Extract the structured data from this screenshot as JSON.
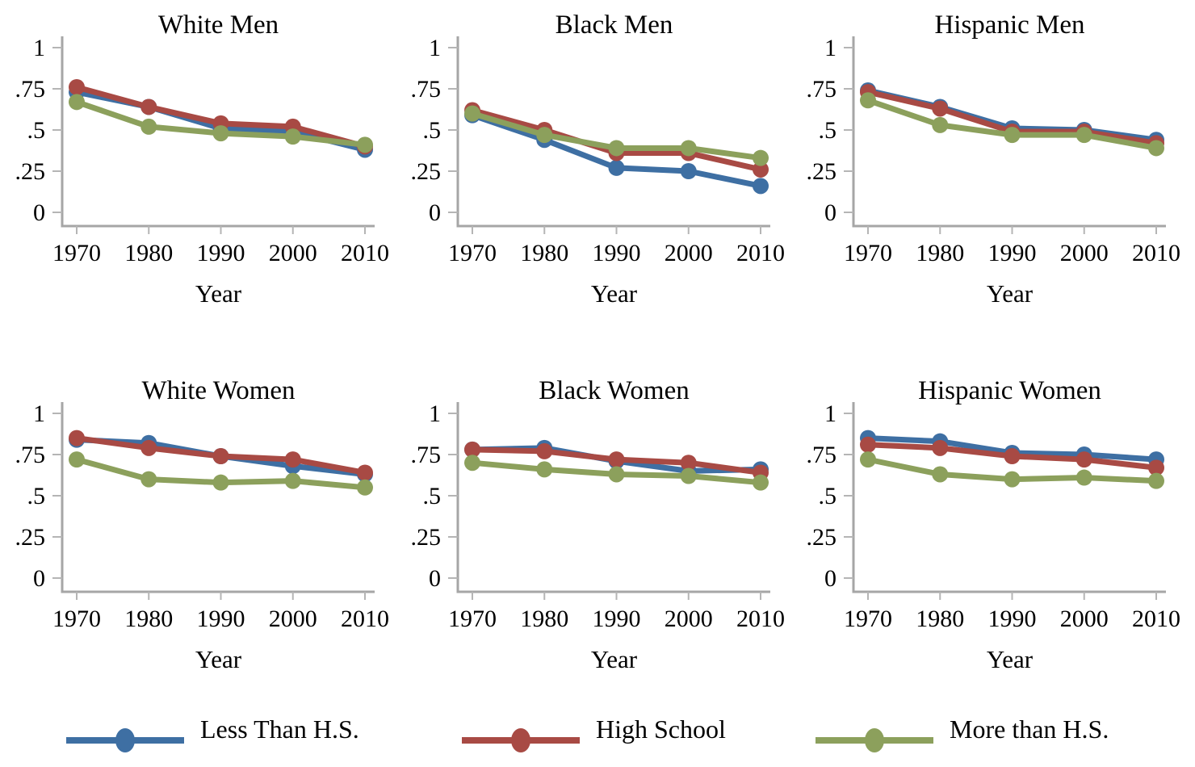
{
  "figure": {
    "background": "#ffffff",
    "text_color": "#000000",
    "axis_color": "#a6a6a6",
    "tick_color": "#b5b5b5"
  },
  "palette": {
    "less_than_hs": "#3e6fa3",
    "high_school": "#a84a44",
    "more_than_hs": "#8ca05c"
  },
  "legend": {
    "entries": [
      {
        "label": "Less Than H.S.",
        "color": "#3e6fa3"
      },
      {
        "label": "High School",
        "color": "#a84a44"
      },
      {
        "label": "More than H.S.",
        "color": "#8ca05c"
      }
    ]
  },
  "chart_data": [
    {
      "type": "line",
      "title": "White Men",
      "xlabel": "Year",
      "x": [
        1970,
        1980,
        1990,
        2000,
        2010
      ],
      "xtick_labels": [
        "1970",
        "1980",
        "1990",
        "2000",
        "2010"
      ],
      "ylim": [
        0,
        1
      ],
      "ytick_labels": [
        "0",
        ".25",
        ".5",
        ".75",
        "1"
      ],
      "ytick_values": [
        0,
        0.25,
        0.5,
        0.75,
        1
      ],
      "grid": false,
      "series": [
        {
          "name": "Less Than H.S.",
          "color": "#3e6fa3",
          "values": [
            0.73,
            0.64,
            0.51,
            0.49,
            0.38
          ]
        },
        {
          "name": "High School",
          "color": "#a84a44",
          "values": [
            0.76,
            0.64,
            0.54,
            0.52,
            0.4
          ]
        },
        {
          "name": "More than H.S.",
          "color": "#8ca05c",
          "values": [
            0.67,
            0.52,
            0.48,
            0.46,
            0.41
          ]
        }
      ]
    },
    {
      "type": "line",
      "title": "Black Men",
      "xlabel": "Year",
      "x": [
        1970,
        1980,
        1990,
        2000,
        2010
      ],
      "xtick_labels": [
        "1970",
        "1980",
        "1990",
        "2000",
        "2010"
      ],
      "ylim": [
        0,
        1
      ],
      "ytick_labels": [
        "0",
        ".25",
        ".5",
        ".75",
        "1"
      ],
      "ytick_values": [
        0,
        0.25,
        0.5,
        0.75,
        1
      ],
      "grid": false,
      "series": [
        {
          "name": "Less Than H.S.",
          "color": "#3e6fa3",
          "values": [
            0.59,
            0.44,
            0.27,
            0.25,
            0.16
          ]
        },
        {
          "name": "High School",
          "color": "#a84a44",
          "values": [
            0.62,
            0.5,
            0.36,
            0.36,
            0.26
          ]
        },
        {
          "name": "More than H.S.",
          "color": "#8ca05c",
          "values": [
            0.6,
            0.47,
            0.39,
            0.39,
            0.33
          ]
        }
      ]
    },
    {
      "type": "line",
      "title": "Hispanic Men",
      "xlabel": "Year",
      "x": [
        1970,
        1980,
        1990,
        2000,
        2010
      ],
      "xtick_labels": [
        "1970",
        "1980",
        "1990",
        "2000",
        "2010"
      ],
      "ylim": [
        0,
        1
      ],
      "ytick_labels": [
        "0",
        ".25",
        ".5",
        ".75",
        "1"
      ],
      "ytick_values": [
        0,
        0.25,
        0.5,
        0.75,
        1
      ],
      "grid": false,
      "series": [
        {
          "name": "Less Than H.S.",
          "color": "#3e6fa3",
          "values": [
            0.74,
            0.64,
            0.51,
            0.5,
            0.44
          ]
        },
        {
          "name": "High School",
          "color": "#a84a44",
          "values": [
            0.73,
            0.63,
            0.49,
            0.49,
            0.42
          ]
        },
        {
          "name": "More than H.S.",
          "color": "#8ca05c",
          "values": [
            0.68,
            0.53,
            0.47,
            0.47,
            0.39
          ]
        }
      ]
    },
    {
      "type": "line",
      "title": "White Women",
      "xlabel": "Year",
      "x": [
        1970,
        1980,
        1990,
        2000,
        2010
      ],
      "xtick_labels": [
        "1970",
        "1980",
        "1990",
        "2000",
        "2010"
      ],
      "ylim": [
        0,
        1
      ],
      "ytick_labels": [
        "0",
        ".25",
        ".5",
        ".75",
        "1"
      ],
      "ytick_values": [
        0,
        0.25,
        0.5,
        0.75,
        1
      ],
      "grid": false,
      "series": [
        {
          "name": "Less Than H.S.",
          "color": "#3e6fa3",
          "values": [
            0.84,
            0.82,
            0.74,
            0.68,
            0.63
          ]
        },
        {
          "name": "High School",
          "color": "#a84a44",
          "values": [
            0.85,
            0.79,
            0.74,
            0.72,
            0.64
          ]
        },
        {
          "name": "More than H.S.",
          "color": "#8ca05c",
          "values": [
            0.72,
            0.6,
            0.58,
            0.59,
            0.55
          ]
        }
      ]
    },
    {
      "type": "line",
      "title": "Black Women",
      "xlabel": "Year",
      "x": [
        1970,
        1980,
        1990,
        2000,
        2010
      ],
      "xtick_labels": [
        "1970",
        "1980",
        "1990",
        "2000",
        "2010"
      ],
      "ylim": [
        0,
        1
      ],
      "ytick_labels": [
        "0",
        ".25",
        ".5",
        ".75",
        "1"
      ],
      "ytick_values": [
        0,
        0.25,
        0.5,
        0.75,
        1
      ],
      "grid": false,
      "series": [
        {
          "name": "Less Than H.S.",
          "color": "#3e6fa3",
          "values": [
            0.78,
            0.79,
            0.71,
            0.65,
            0.66
          ]
        },
        {
          "name": "High School",
          "color": "#a84a44",
          "values": [
            0.78,
            0.77,
            0.72,
            0.7,
            0.64
          ]
        },
        {
          "name": "More than H.S.",
          "color": "#8ca05c",
          "values": [
            0.7,
            0.66,
            0.63,
            0.62,
            0.58
          ]
        }
      ]
    },
    {
      "type": "line",
      "title": "Hispanic Women",
      "xlabel": "Year",
      "x": [
        1970,
        1980,
        1990,
        2000,
        2010
      ],
      "xtick_labels": [
        "1970",
        "1980",
        "1990",
        "2000",
        "2010"
      ],
      "ylim": [
        0,
        1
      ],
      "ytick_labels": [
        "0",
        ".25",
        ".5",
        ".75",
        "1"
      ],
      "ytick_values": [
        0,
        0.25,
        0.5,
        0.75,
        1
      ],
      "grid": false,
      "series": [
        {
          "name": "Less Than H.S.",
          "color": "#3e6fa3",
          "values": [
            0.85,
            0.83,
            0.76,
            0.75,
            0.72
          ]
        },
        {
          "name": "High School",
          "color": "#a84a44",
          "values": [
            0.81,
            0.79,
            0.74,
            0.72,
            0.67
          ]
        },
        {
          "name": "More than H.S.",
          "color": "#8ca05c",
          "values": [
            0.72,
            0.63,
            0.6,
            0.61,
            0.59
          ]
        }
      ]
    }
  ]
}
